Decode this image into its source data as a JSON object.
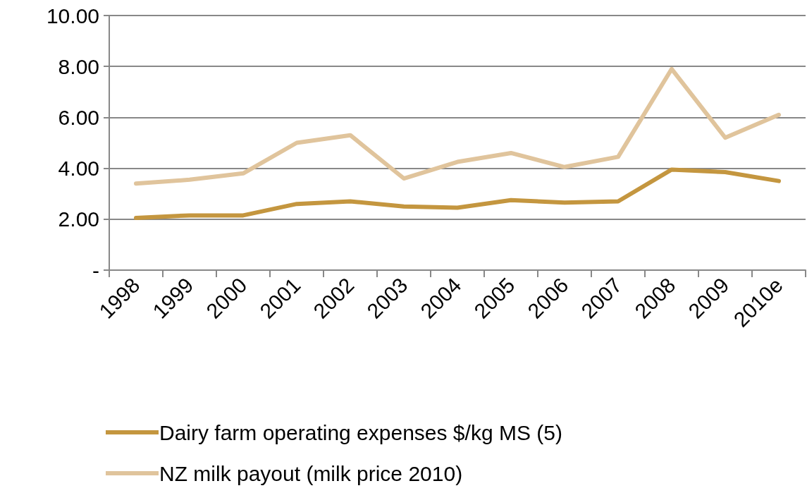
{
  "chart_data": {
    "type": "line",
    "categories": [
      "1998",
      "1999",
      "2000",
      "2001",
      "2002",
      "2003",
      "2004",
      "2005",
      "2006",
      "2007",
      "2008",
      "2009",
      "2010e"
    ],
    "series": [
      {
        "name": "Dairy farm operating expenses $/kg MS (5)",
        "color": "#c4963f",
        "values": [
          2.05,
          2.15,
          2.15,
          2.6,
          2.7,
          2.5,
          2.45,
          2.75,
          2.65,
          2.7,
          3.95,
          3.85,
          3.5
        ]
      },
      {
        "name": "NZ milk payout (milk price 2010)",
        "color": "#e0c49c",
        "values": [
          3.4,
          3.55,
          3.8,
          5.0,
          5.3,
          3.6,
          4.25,
          4.6,
          4.05,
          4.45,
          7.9,
          5.2,
          6.1
        ]
      }
    ],
    "ylim": [
      0,
      10
    ],
    "yticks": [
      {
        "value": 0,
        "label": "-"
      },
      {
        "value": 2,
        "label": "2.00"
      },
      {
        "value": 4,
        "label": "4.00"
      },
      {
        "value": 6,
        "label": "6.00"
      },
      {
        "value": 8,
        "label": "8.00"
      },
      {
        "value": 10,
        "label": "10.00"
      }
    ],
    "grid": "y",
    "legend": "bottom",
    "marker": "none",
    "line_style": "solid"
  }
}
